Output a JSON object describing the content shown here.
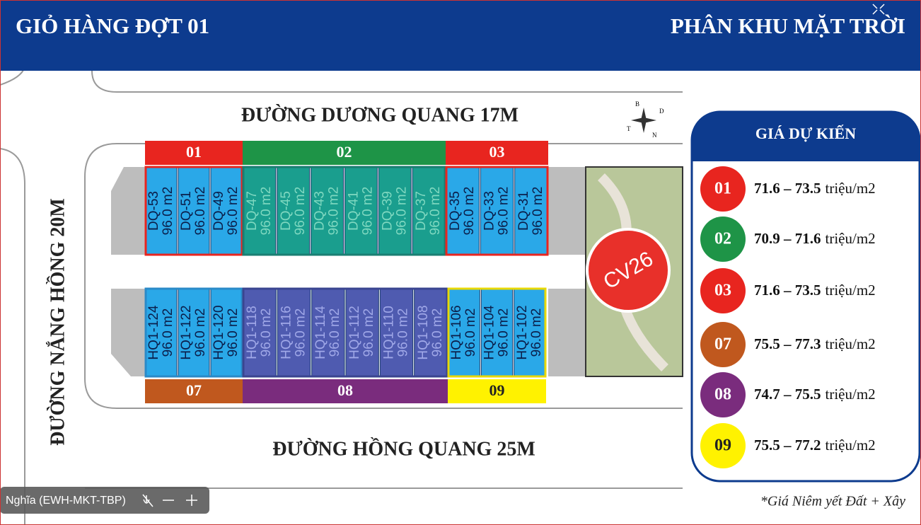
{
  "header": {
    "left_title": "GIỎ HÀNG ĐỢT 01",
    "right_title": "PHÂN KHU MẶT TRỜI"
  },
  "roads": {
    "top": "ĐƯỜNG DƯƠNG QUANG 17M",
    "left": "ĐƯỜNG NẮNG HỒNG 20M",
    "bottom": "ĐƯỜNG HỒNG QUANG 25M"
  },
  "compass": [
    "B",
    "D",
    "N",
    "T"
  ],
  "top_zones": [
    {
      "label": "01",
      "lots": [
        {
          "code": "DQ-53",
          "area": "96.0 m2"
        },
        {
          "code": "DQ-51",
          "area": "96.0 m2"
        },
        {
          "code": "DQ-49",
          "area": "96.0 m2"
        }
      ]
    },
    {
      "label": "02",
      "lots": [
        {
          "code": "DQ-47",
          "area": "96.0 m2"
        },
        {
          "code": "DQ-45",
          "area": "96.0 m2"
        },
        {
          "code": "DQ-43",
          "area": "96.0 m2"
        },
        {
          "code": "DQ-41",
          "area": "96.0 m2"
        },
        {
          "code": "DQ-39",
          "area": "96.0 m2"
        },
        {
          "code": "DQ-37",
          "area": "96.0 m2"
        }
      ]
    },
    {
      "label": "03",
      "lots": [
        {
          "code": "DQ-35",
          "area": "96.0 m2"
        },
        {
          "code": "DQ-33",
          "area": "96.0 m2"
        },
        {
          "code": "DQ-31",
          "area": "96.0 m2"
        }
      ]
    }
  ],
  "bottom_zones": [
    {
      "label": "07",
      "lots": [
        {
          "code": "HQ1-124",
          "area": "96.0 m2"
        },
        {
          "code": "HQ1-122",
          "area": "96.0 m2"
        },
        {
          "code": "HQ1-120",
          "area": "96.0 m2"
        }
      ]
    },
    {
      "label": "08",
      "lots": [
        {
          "code": "HQ1-118",
          "area": "96.0 m2"
        },
        {
          "code": "HQ1-116",
          "area": "96.0 m2"
        },
        {
          "code": "HQ1-114",
          "area": "96.0 m2"
        },
        {
          "code": "HQ1-112",
          "area": "96.0 m2"
        },
        {
          "code": "HQ1-110",
          "area": "96.0 m2"
        },
        {
          "code": "HQ1-108",
          "area": "96.0 m2"
        }
      ]
    },
    {
      "label": "09",
      "lots": [
        {
          "code": "HQ1-106",
          "area": "96.0 m2"
        },
        {
          "code": "HQ1-104",
          "area": "96.0 m2"
        },
        {
          "code": "HQ1-102",
          "area": "96.0 m2"
        }
      ]
    }
  ],
  "park_label": "CV26",
  "price_panel": {
    "title": "GIÁ DỰ KIẾN",
    "rows": [
      {
        "zone": "01",
        "range": "71.6 – 73.5",
        "unit": "triệu/m2"
      },
      {
        "zone": "02",
        "range": "70.9 – 71.6",
        "unit": "triệu/m2"
      },
      {
        "zone": "03",
        "range": "71.6 – 73.5",
        "unit": "triệu/m2"
      },
      {
        "zone": "07",
        "range": "75.5 – 77.3",
        "unit": "triệu/m2"
      },
      {
        "zone": "08",
        "range": "74.7 – 75.5",
        "unit": "triệu/m2"
      },
      {
        "zone": "09",
        "range": "75.5 – 77.2",
        "unit": "triệu/m2"
      }
    ]
  },
  "note": "*Giá Niêm yết Đất + Xây",
  "overlay": {
    "participant": "Nghĩa (EWH-MKT-TBP)"
  }
}
